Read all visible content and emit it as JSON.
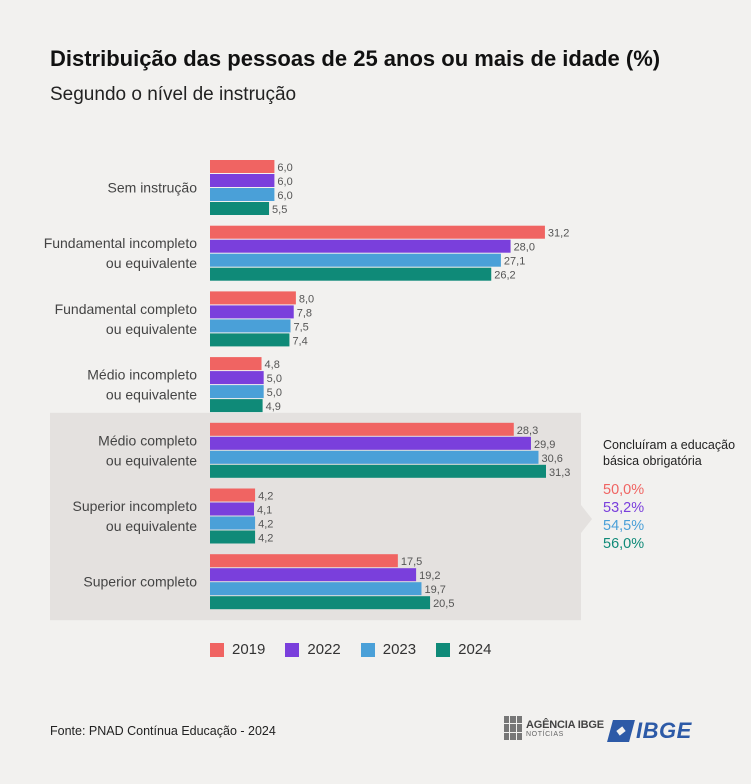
{
  "header": {
    "title": "Distribuição das pessoas de 25 anos ou mais de idade (%)",
    "subtitle": "Segundo o nível de instrução"
  },
  "colors": {
    "2019": "#f06462",
    "2022": "#7a3fdc",
    "2023": "#4aa0d8",
    "2024": "#0f8a78",
    "highlight_bg": "#e4e1df"
  },
  "chart_data": {
    "type": "bar",
    "orientation": "horizontal",
    "categories": [
      [
        "Sem instrução"
      ],
      [
        "Fundamental incompleto",
        "ou equivalente"
      ],
      [
        "Fundamental completo",
        "ou equivalente"
      ],
      [
        "Médio incompleto",
        "ou equivalente"
      ],
      [
        "Médio completo",
        "ou equivalente"
      ],
      [
        "Superior incompleto",
        "ou equivalente"
      ],
      [
        "Superior completo"
      ]
    ],
    "series": [
      {
        "name": "2019",
        "values": [
          6.0,
          31.2,
          8.0,
          4.8,
          28.3,
          4.2,
          17.5
        ],
        "labels": [
          "6,0",
          "31,2",
          "8,0",
          "4,8",
          "28,3",
          "4,2",
          "17,5"
        ]
      },
      {
        "name": "2022",
        "values": [
          6.0,
          28.0,
          7.8,
          5.0,
          29.9,
          4.1,
          19.2
        ],
        "labels": [
          "6,0",
          "28,0",
          "7,8",
          "5,0",
          "29,9",
          "4,1",
          "19,2"
        ]
      },
      {
        "name": "2023",
        "values": [
          6.0,
          27.1,
          7.5,
          5.0,
          30.6,
          4.2,
          19.7
        ],
        "labels": [
          "6,0",
          "27,1",
          "7,5",
          "5,0",
          "30,6",
          "4,2",
          "19,7"
        ]
      },
      {
        "name": "2024",
        "values": [
          5.5,
          26.2,
          7.4,
          4.9,
          31.3,
          4.2,
          20.5
        ],
        "labels": [
          "5,5",
          "26,2",
          "7,4",
          "4,9",
          "31,3",
          "4,2",
          "20,5"
        ]
      }
    ],
    "highlighted_categories": [
      4,
      5,
      6
    ],
    "xlim": [
      0,
      31.3
    ],
    "legend_position": "bottom"
  },
  "side_note": {
    "title": "Concluíram a educação básica obrigatória",
    "values": [
      {
        "year": "2019",
        "text": "50,0%"
      },
      {
        "year": "2022",
        "text": "53,2%"
      },
      {
        "year": "2023",
        "text": "54,5%"
      },
      {
        "year": "2024",
        "text": "56,0%"
      }
    ]
  },
  "footer": {
    "source": "Fonte: PNAD Contínua Educação - 2024",
    "agencia_logo_line1": "AGÊNCIA IBGE",
    "agencia_logo_line2": "NOTÍCIAS",
    "ibge_logo": "IBGE"
  }
}
